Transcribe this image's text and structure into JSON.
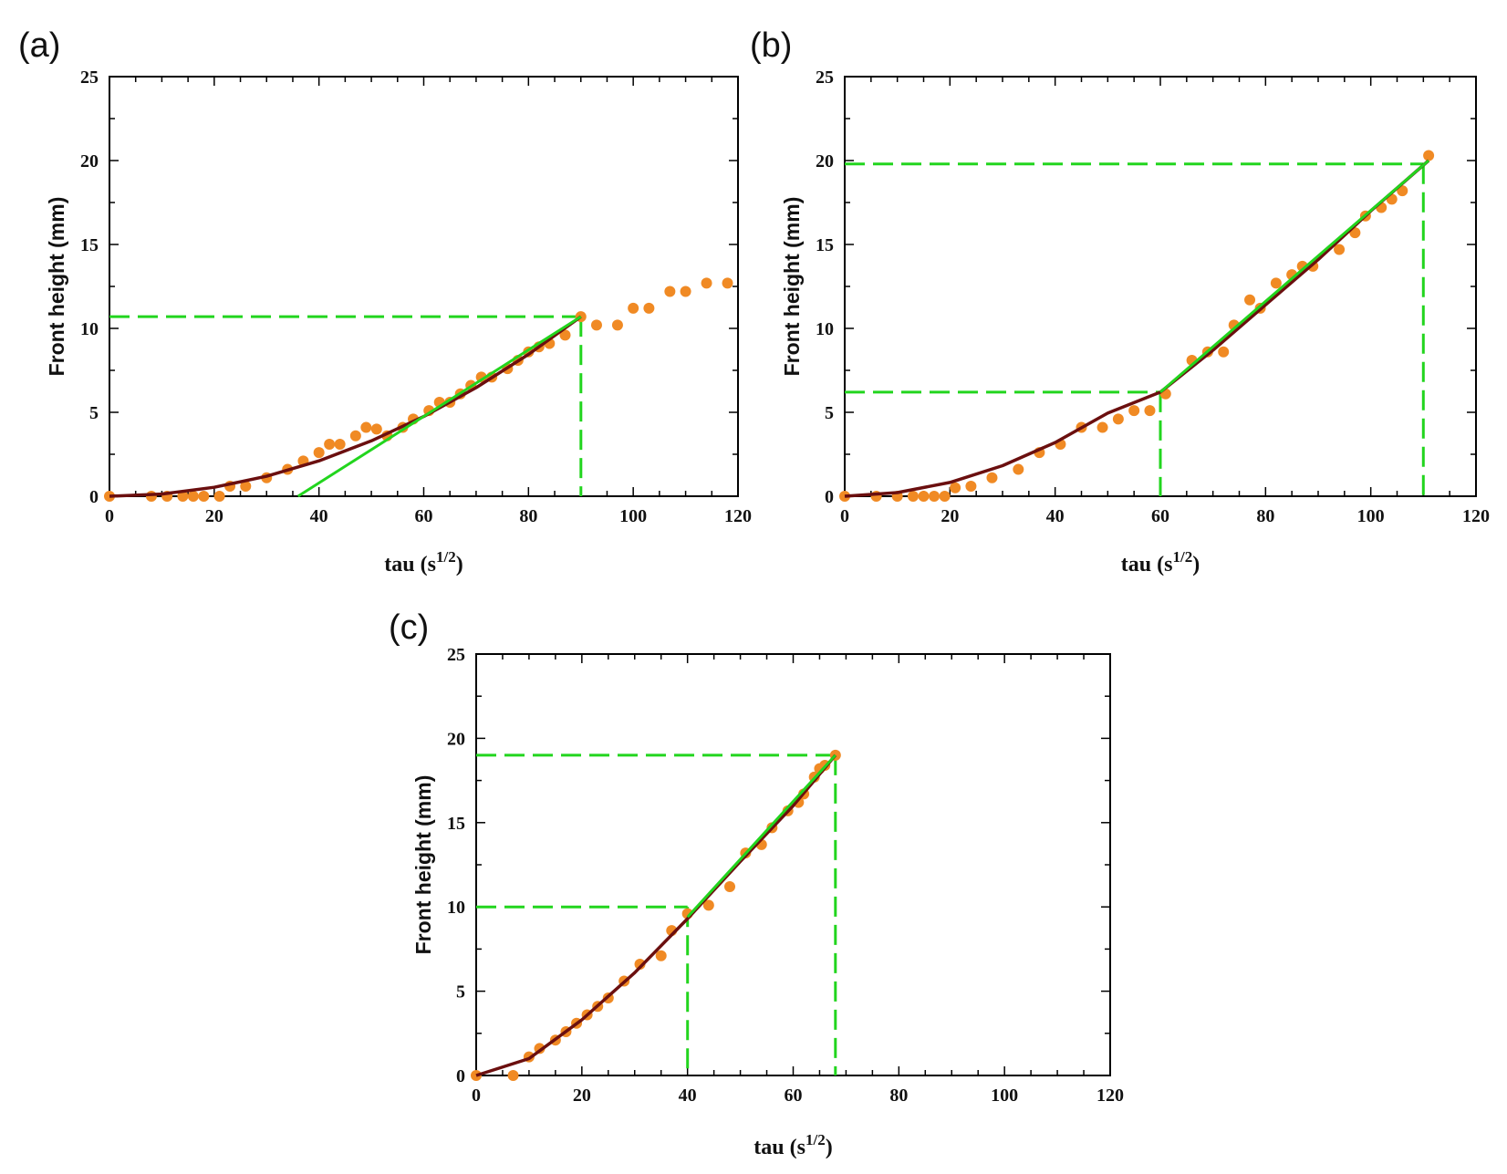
{
  "chart_data": [
    {
      "panel": "(a)",
      "type": "scatter",
      "xlabel": "tau (s",
      "xlabel_sup": "1/2",
      "xlabel_end": ")",
      "ylabel": "Front height (mm)",
      "xlim": [
        0,
        120
      ],
      "ylim": [
        0,
        25
      ],
      "xticks": [
        0,
        20,
        40,
        60,
        80,
        100,
        120
      ],
      "yticks": [
        0,
        5,
        10,
        15,
        20,
        25
      ],
      "grid": false,
      "series": [
        {
          "name": "measured points",
          "kind": "scatter",
          "color": "#F08A24",
          "points": [
            [
              0,
              0
            ],
            [
              8,
              0
            ],
            [
              11,
              0
            ],
            [
              14,
              0
            ],
            [
              16,
              0
            ],
            [
              18,
              0
            ],
            [
              21,
              0
            ],
            [
              23,
              0.6
            ],
            [
              26,
              0.6
            ],
            [
              30,
              1.1
            ],
            [
              34,
              1.6
            ],
            [
              37,
              2.1
            ],
            [
              40,
              2.6
            ],
            [
              42,
              3.1
            ],
            [
              44,
              3.1
            ],
            [
              47,
              3.6
            ],
            [
              49,
              4.1
            ],
            [
              51,
              4.0
            ],
            [
              53,
              3.6
            ],
            [
              56,
              4.1
            ],
            [
              58,
              4.6
            ],
            [
              61,
              5.1
            ],
            [
              63,
              5.6
            ],
            [
              65,
              5.6
            ],
            [
              67,
              6.1
            ],
            [
              69,
              6.6
            ],
            [
              71,
              7.1
            ],
            [
              73,
              7.1
            ],
            [
              76,
              7.6
            ],
            [
              78,
              8.1
            ],
            [
              80,
              8.6
            ],
            [
              82,
              8.9
            ],
            [
              84,
              9.1
            ],
            [
              87,
              9.6
            ],
            [
              90,
              10.7
            ],
            [
              93,
              10.2
            ],
            [
              97,
              10.2
            ],
            [
              100,
              11.2
            ],
            [
              103,
              11.2
            ],
            [
              107,
              12.2
            ],
            [
              110,
              12.2
            ],
            [
              114,
              12.7
            ],
            [
              118,
              12.7
            ]
          ]
        },
        {
          "name": "fitted curve",
          "kind": "curve",
          "color": "#6B0F0F",
          "points": [
            [
              0,
              0
            ],
            [
              10,
              0.13
            ],
            [
              20,
              0.53
            ],
            [
              30,
              1.19
            ],
            [
              40,
              2.11
            ],
            [
              50,
              3.3
            ],
            [
              60,
              4.75
            ],
            [
              70,
              6.47
            ],
            [
              80,
              8.45
            ],
            [
              90,
              10.7
            ]
          ]
        },
        {
          "name": "linear fit",
          "kind": "line",
          "color": "#22D51E",
          "points": [
            [
              36,
              0
            ],
            [
              90,
              10.7
            ]
          ]
        },
        {
          "name": "horizontal guide",
          "kind": "dashed",
          "color": "#22D51E",
          "points": [
            [
              0,
              10.7
            ],
            [
              90,
              10.7
            ]
          ]
        },
        {
          "name": "vertical guide",
          "kind": "dashed",
          "color": "#22D51E",
          "points": [
            [
              90,
              10.7
            ],
            [
              90,
              0
            ]
          ]
        }
      ]
    },
    {
      "panel": "(b)",
      "type": "scatter",
      "xlabel": "tau (s",
      "xlabel_sup": "1/2",
      "xlabel_end": ")",
      "ylabel": "Front height (mm)",
      "xlim": [
        0,
        120
      ],
      "ylim": [
        0,
        25
      ],
      "xticks": [
        0,
        20,
        40,
        60,
        80,
        100,
        120
      ],
      "yticks": [
        0,
        5,
        10,
        15,
        20,
        25
      ],
      "grid": false,
      "series": [
        {
          "name": "measured points",
          "kind": "scatter",
          "color": "#F08A24",
          "points": [
            [
              0,
              0
            ],
            [
              6,
              0
            ],
            [
              10,
              0
            ],
            [
              13,
              0
            ],
            [
              15,
              0
            ],
            [
              17,
              0
            ],
            [
              19,
              0
            ],
            [
              21,
              0.5
            ],
            [
              24,
              0.6
            ],
            [
              28,
              1.1
            ],
            [
              33,
              1.6
            ],
            [
              37,
              2.6
            ],
            [
              41,
              3.1
            ],
            [
              45,
              4.1
            ],
            [
              49,
              4.1
            ],
            [
              52,
              4.6
            ],
            [
              55,
              5.1
            ],
            [
              58,
              5.1
            ],
            [
              61,
              6.1
            ],
            [
              66,
              8.1
            ],
            [
              69,
              8.6
            ],
            [
              72,
              8.6
            ],
            [
              74,
              10.2
            ],
            [
              77,
              11.7
            ],
            [
              79,
              11.2
            ],
            [
              82,
              12.7
            ],
            [
              85,
              13.2
            ],
            [
              87,
              13.7
            ],
            [
              89,
              13.7
            ],
            [
              94,
              14.7
            ],
            [
              97,
              15.7
            ],
            [
              99,
              16.7
            ],
            [
              102,
              17.2
            ],
            [
              104,
              17.7
            ],
            [
              106,
              18.2
            ],
            [
              111,
              20.3
            ]
          ]
        },
        {
          "name": "fitted curve",
          "kind": "curve",
          "color": "#6B0F0F",
          "points": [
            [
              0,
              0
            ],
            [
              10,
              0.22
            ],
            [
              20,
              0.82
            ],
            [
              30,
              1.82
            ],
            [
              40,
              3.2
            ],
            [
              50,
              4.95
            ],
            [
              60,
              6.2
            ],
            [
              70,
              8.7
            ],
            [
              80,
              11.4
            ],
            [
              90,
              14.1
            ],
            [
              100,
              17.0
            ],
            [
              111,
              20.0
            ]
          ]
        },
        {
          "name": "linear fit",
          "kind": "line",
          "color": "#22D51E",
          "points": [
            [
              60,
              6.2
            ],
            [
              111,
              20.0
            ]
          ]
        },
        {
          "name": "upper horizontal guide",
          "kind": "dashed",
          "color": "#22D51E",
          "points": [
            [
              0,
              19.8
            ],
            [
              110,
              19.8
            ]
          ]
        },
        {
          "name": "upper vertical guide",
          "kind": "dashed",
          "color": "#22D51E",
          "points": [
            [
              110,
              19.8
            ],
            [
              110,
              0
            ]
          ]
        },
        {
          "name": "lower horizontal guide",
          "kind": "dashed",
          "color": "#22D51E",
          "points": [
            [
              0,
              6.2
            ],
            [
              60,
              6.2
            ]
          ]
        },
        {
          "name": "lower vertical guide",
          "kind": "dashed",
          "color": "#22D51E",
          "points": [
            [
              60,
              6.2
            ],
            [
              60,
              0
            ]
          ]
        }
      ]
    },
    {
      "panel": "(c)",
      "type": "scatter",
      "xlabel": "tau  (s",
      "xlabel_sup": "1/2",
      "xlabel_end": ")",
      "ylabel": "Front height (mm)",
      "xlim": [
        0,
        120
      ],
      "ylim": [
        0,
        25
      ],
      "xticks": [
        0,
        20,
        40,
        60,
        80,
        100,
        120
      ],
      "yticks": [
        0,
        5,
        10,
        15,
        20,
        25
      ],
      "grid": false,
      "series": [
        {
          "name": "measured points",
          "kind": "scatter",
          "color": "#F08A24",
          "points": [
            [
              0,
              0
            ],
            [
              7,
              0
            ],
            [
              10,
              1.1
            ],
            [
              12,
              1.6
            ],
            [
              15,
              2.1
            ],
            [
              17,
              2.6
            ],
            [
              19,
              3.1
            ],
            [
              21,
              3.6
            ],
            [
              23,
              4.1
            ],
            [
              25,
              4.6
            ],
            [
              28,
              5.6
            ],
            [
              31,
              6.6
            ],
            [
              35,
              7.1
            ],
            [
              37,
              8.6
            ],
            [
              40,
              9.6
            ],
            [
              44,
              10.1
            ],
            [
              48,
              11.2
            ],
            [
              51,
              13.2
            ],
            [
              54,
              13.7
            ],
            [
              56,
              14.7
            ],
            [
              59,
              15.7
            ],
            [
              61,
              16.2
            ],
            [
              62,
              16.7
            ],
            [
              64,
              17.7
            ],
            [
              65,
              18.2
            ],
            [
              66,
              18.4
            ],
            [
              68,
              19.0
            ]
          ]
        },
        {
          "name": "fitted curve",
          "kind": "curve",
          "color": "#6B0F0F",
          "points": [
            [
              0,
              0
            ],
            [
              10,
              1.0
            ],
            [
              20,
              3.3
            ],
            [
              30,
              6.1
            ],
            [
              40,
              9.3
            ],
            [
              50,
              12.7
            ],
            [
              60,
              16.0
            ],
            [
              68,
              19.0
            ]
          ]
        },
        {
          "name": "linear fit",
          "kind": "line",
          "color": "#22D51E",
          "points": [
            [
              40,
              9.4
            ],
            [
              68,
              19.0
            ]
          ]
        },
        {
          "name": "upper horizontal guide",
          "kind": "dashed",
          "color": "#22D51E",
          "points": [
            [
              0,
              19.0
            ],
            [
              68,
              19.0
            ]
          ]
        },
        {
          "name": "upper vertical guide",
          "kind": "dashed",
          "color": "#22D51E",
          "points": [
            [
              68,
              19.0
            ],
            [
              68,
              0
            ]
          ]
        },
        {
          "name": "lower horizontal guide",
          "kind": "dashed",
          "color": "#22D51E",
          "points": [
            [
              0,
              10.0
            ],
            [
              40,
              10.0
            ]
          ]
        },
        {
          "name": "lower vertical guide",
          "kind": "dashed",
          "color": "#22D51E",
          "points": [
            [
              40,
              10.0
            ],
            [
              40,
              0
            ]
          ]
        }
      ]
    }
  ]
}
